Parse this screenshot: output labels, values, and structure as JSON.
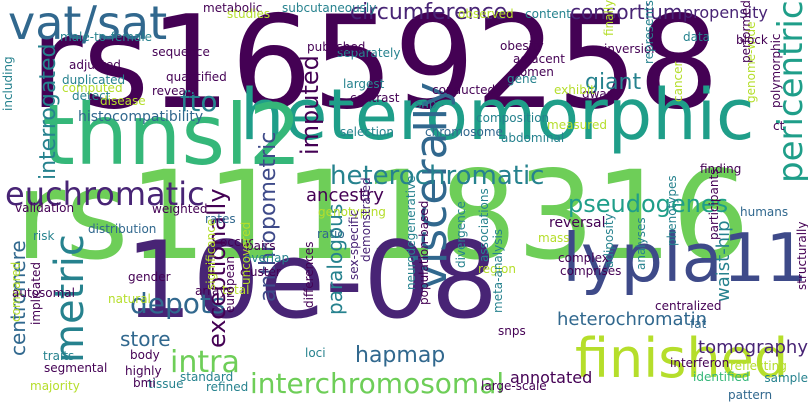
{
  "colors": {
    "background": "#ffffff",
    "palette": [
      "#440154",
      "#482475",
      "#3e4a89",
      "#31688e",
      "#26828e",
      "#1f9e89",
      "#35b779",
      "#6ece58",
      "#b5de2b",
      "#fde725"
    ]
  },
  "words": [
    {
      "text": "rs1659258",
      "color": "#440154"
    },
    {
      "text": "rs11118316",
      "color": "#6ece58"
    },
    {
      "text": "10e-08",
      "color": "#482475"
    },
    {
      "text": "heteromorphic",
      "color": "#1f9e89"
    },
    {
      "text": "thnsl2",
      "color": "#35b779"
    },
    {
      "text": "vat/sat",
      "color": "#31688e"
    },
    {
      "text": "lypla11",
      "color": "#3e4a89"
    },
    {
      "text": "finished",
      "color": "#b5de2b"
    },
    {
      "text": "metric",
      "color": "#26828e"
    },
    {
      "text": "viscerally",
      "color": "#31688e"
    },
    {
      "text": "euchromatic",
      "color": "#482475"
    },
    {
      "text": "interchromosomal",
      "color": "#6ece58"
    },
    {
      "text": "heterochromatic",
      "color": "#26828e"
    },
    {
      "text": "pericentric",
      "color": "#1f9e89"
    },
    {
      "text": "pseudogenes",
      "color": "#1f9e89"
    },
    {
      "text": "imputed",
      "color": "#440154"
    },
    {
      "text": "circumference",
      "color": "#482475"
    },
    {
      "text": "consortium",
      "color": "#482475"
    },
    {
      "text": "fto",
      "color": "#26828e"
    },
    {
      "text": "hapmap",
      "color": "#31688e"
    },
    {
      "text": "depots",
      "color": "#31688e"
    },
    {
      "text": "intra",
      "color": "#6ece58"
    },
    {
      "text": "exceptionally",
      "color": "#440154"
    },
    {
      "text": "store",
      "color": "#31688e"
    },
    {
      "text": "anthropometric",
      "color": "#3e4a89"
    },
    {
      "text": "paralogous",
      "color": "#26828e"
    },
    {
      "text": "heterochromatin",
      "color": "#31688e"
    },
    {
      "text": "tomography",
      "color": "#482475"
    },
    {
      "text": "waist-hip",
      "color": "#26828e"
    },
    {
      "text": "giant",
      "color": "#26828e"
    },
    {
      "text": "propensity",
      "color": "#482475"
    },
    {
      "text": "interrogated",
      "color": "#26828e"
    },
    {
      "text": "centromere",
      "color": "#31688e"
    },
    {
      "text": "annotated",
      "color": "#440154"
    },
    {
      "text": "ancestry",
      "color": "#440154"
    },
    {
      "text": "histocompatibility",
      "color": "#31688e"
    },
    {
      "text": "validation",
      "color": "#440154"
    },
    {
      "text": "distribution",
      "color": "#31688e"
    },
    {
      "text": "weighted",
      "color": "#440154"
    },
    {
      "text": "rates",
      "color": "#31688e"
    },
    {
      "text": "ratio",
      "color": "#31688e"
    },
    {
      "text": "genotyping",
      "color": "#b5de2b"
    },
    {
      "text": "occur",
      "color": "#440154"
    },
    {
      "text": "pairs",
      "color": "#440154"
    },
    {
      "text": "overlap",
      "color": "#26828e"
    },
    {
      "text": "cluster",
      "color": "#440154"
    },
    {
      "text": "arrays",
      "color": "#440154"
    },
    {
      "text": "total",
      "color": "#b5de2b"
    },
    {
      "text": "european",
      "color": "#440154"
    },
    {
      "text": "sex-specific",
      "color": "#482475"
    },
    {
      "text": "demonstrated",
      "color": "#482475"
    },
    {
      "text": "neurodegenerative",
      "color": "#26828e"
    },
    {
      "text": "population-based",
      "color": "#440154"
    },
    {
      "text": "divergence",
      "color": "#26828e"
    },
    {
      "text": "associations",
      "color": "#26828e"
    },
    {
      "text": "reversal",
      "color": "#440154"
    },
    {
      "text": "mass",
      "color": "#b5de2b"
    },
    {
      "text": "complex",
      "color": "#440154"
    },
    {
      "text": "comprises",
      "color": "#440154"
    },
    {
      "text": "region",
      "color": "#b5de2b"
    },
    {
      "text": "adiposity",
      "color": "#26828e"
    },
    {
      "text": "analyses",
      "color": "#26828e"
    },
    {
      "text": "phenotypes",
      "color": "#26828e"
    },
    {
      "text": "participants",
      "color": "#440154"
    },
    {
      "text": "finding",
      "color": "#440154"
    },
    {
      "text": "humans",
      "color": "#31688e"
    },
    {
      "text": "structurally",
      "color": "#440154"
    },
    {
      "text": "centralized",
      "color": "#440154"
    },
    {
      "text": "fat",
      "color": "#31688e"
    },
    {
      "text": "interferon",
      "color": "#440154"
    },
    {
      "text": "reflecting",
      "color": "#b5de2b"
    },
    {
      "text": "identified",
      "color": "#35b779"
    },
    {
      "text": "sample",
      "color": "#26828e"
    },
    {
      "text": "pattern",
      "color": "#31688e"
    },
    {
      "text": "snps",
      "color": "#440154"
    },
    {
      "text": "meta-analysis",
      "color": "#26828e"
    },
    {
      "text": "large-scale",
      "color": "#440154"
    },
    {
      "text": "loci",
      "color": "#26828e"
    },
    {
      "text": "differences",
      "color": "#440154"
    },
    {
      "text": "uncovered",
      "color": "#b5de2b"
    },
    {
      "text": "significance",
      "color": "#b5de2b"
    },
    {
      "text": "refined",
      "color": "#26828e"
    },
    {
      "text": "standard",
      "color": "#26828e"
    },
    {
      "text": "highly",
      "color": "#440154"
    },
    {
      "text": "body",
      "color": "#440154"
    },
    {
      "text": "tissue",
      "color": "#26828e"
    },
    {
      "text": "bmi",
      "color": "#440154"
    },
    {
      "text": "implicated",
      "color": "#440154"
    },
    {
      "text": "majority",
      "color": "#b5de2b"
    },
    {
      "text": "compared",
      "color": "#b5de2b"
    },
    {
      "text": "traits",
      "color": "#26828e"
    },
    {
      "text": "segmental",
      "color": "#440154"
    },
    {
      "text": "autosomal",
      "color": "#440154"
    },
    {
      "text": "natural",
      "color": "#b5de2b"
    },
    {
      "text": "gender",
      "color": "#440154"
    },
    {
      "text": "risk",
      "color": "#26828e"
    },
    {
      "text": "cancer",
      "color": "#b5de2b"
    },
    {
      "text": "selection",
      "color": "#26828e"
    },
    {
      "text": "chromosome",
      "color": "#31688e"
    },
    {
      "text": "composition",
      "color": "#26828e"
    },
    {
      "text": "abdominal",
      "color": "#26828e"
    },
    {
      "text": "measured",
      "color": "#b5de2b"
    },
    {
      "text": "detect",
      "color": "#26828e"
    },
    {
      "text": "computed",
      "color": "#b5de2b"
    },
    {
      "text": "disease",
      "color": "#b5de2b"
    },
    {
      "text": "duplicated",
      "color": "#26828e"
    },
    {
      "text": "reveals",
      "color": "#440154"
    },
    {
      "text": "quantified",
      "color": "#440154"
    },
    {
      "text": "adjusted",
      "color": "#440154"
    },
    {
      "text": "sequence",
      "color": "#440154"
    },
    {
      "text": "male-to-female",
      "color": "#26828e"
    },
    {
      "text": "including",
      "color": "#26828e"
    },
    {
      "text": "metabolic",
      "color": "#440154"
    },
    {
      "text": "studies",
      "color": "#b5de2b"
    },
    {
      "text": "subcutaneously",
      "color": "#26828e"
    },
    {
      "text": "content",
      "color": "#26828e"
    },
    {
      "text": "observed",
      "color": "#b5de2b"
    },
    {
      "text": "separately",
      "color": "#26828e"
    },
    {
      "text": "published",
      "color": "#440154"
    },
    {
      "text": "obesity",
      "color": "#440154"
    },
    {
      "text": "adjacent",
      "color": "#440154"
    },
    {
      "text": "women",
      "color": "#440154"
    },
    {
      "text": "largest",
      "color": "#26828e"
    },
    {
      "text": "contrast",
      "color": "#440154"
    },
    {
      "text": "snp",
      "color": "#26828e"
    },
    {
      "text": "conducted",
      "color": "#440154"
    },
    {
      "text": "gwas",
      "color": "#440154"
    },
    {
      "text": "exhibit",
      "color": "#b5de2b"
    },
    {
      "text": "gene",
      "color": "#26828e"
    },
    {
      "text": "finally",
      "color": "#b5de2b"
    },
    {
      "text": "data",
      "color": "#26828e"
    },
    {
      "text": "inversions",
      "color": "#440154"
    },
    {
      "text": "represents",
      "color": "#26828e"
    },
    {
      "text": "genome-wide",
      "color": "#b5de2b"
    },
    {
      "text": "block",
      "color": "#440154"
    },
    {
      "text": "performed",
      "color": "#440154"
    },
    {
      "text": "polymorphic",
      "color": "#440154"
    },
    {
      "text": "ct",
      "color": "#440154"
    }
  ]
}
